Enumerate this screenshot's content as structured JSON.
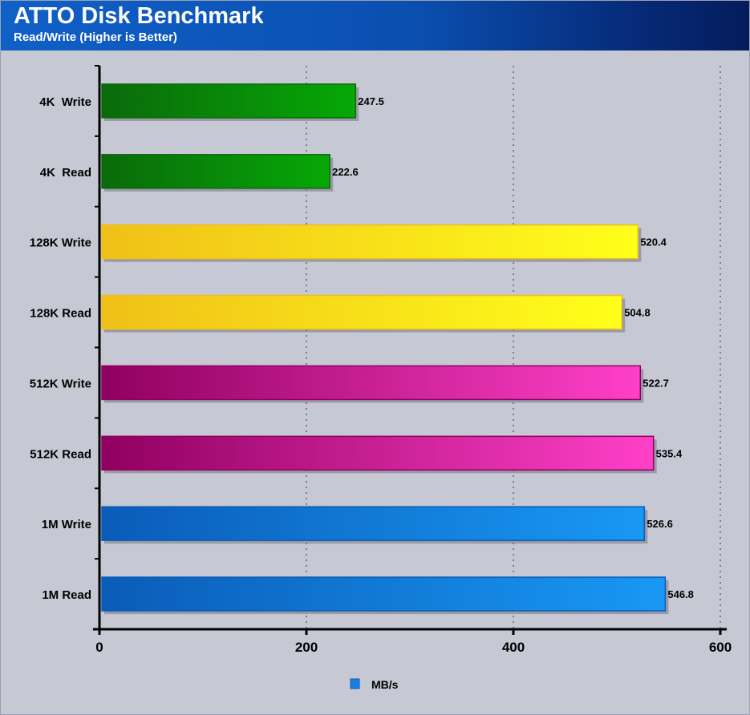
{
  "header": {
    "title": "ATTO Disk Benchmark",
    "subtitle": "Read/Write (Higher is Better)"
  },
  "chart_data": {
    "type": "bar",
    "orientation": "horizontal",
    "title": "ATTO Disk Benchmark",
    "subtitle": "Read/Write (Higher is Better)",
    "categories": [
      "4K  Write",
      "4K  Read",
      "128K Write",
      "128K Read",
      "512K Write",
      "512K Read",
      "1M Write",
      "1M Read"
    ],
    "values": [
      247.5,
      222.6,
      520.4,
      504.8,
      522.7,
      535.4,
      526.6,
      546.8
    ],
    "value_labels": [
      "247.5",
      "222.6",
      "520.4",
      "504.8",
      "522.7",
      "535.4",
      "526.6",
      "546.8"
    ],
    "bar_colors": [
      [
        "#0a6a0a",
        "#06a806"
      ],
      [
        "#0a6a0a",
        "#06a806"
      ],
      [
        "#f0c018",
        "#ffff1a"
      ],
      [
        "#f0c018",
        "#ffff1a"
      ],
      [
        "#900060",
        "#ff40c8"
      ],
      [
        "#900060",
        "#ff40c8"
      ],
      [
        "#0a5cb8",
        "#1898f4"
      ],
      [
        "#0a5cb8",
        "#1898f4"
      ]
    ],
    "xlim": [
      0,
      600
    ],
    "xticks": [
      "0",
      "200",
      "400",
      "600"
    ],
    "xtick_values": [
      0,
      200,
      400,
      600
    ],
    "grid": true,
    "legend": {
      "label": "MB/s",
      "color": "#1a80e0",
      "placement": "bottom-center"
    }
  }
}
